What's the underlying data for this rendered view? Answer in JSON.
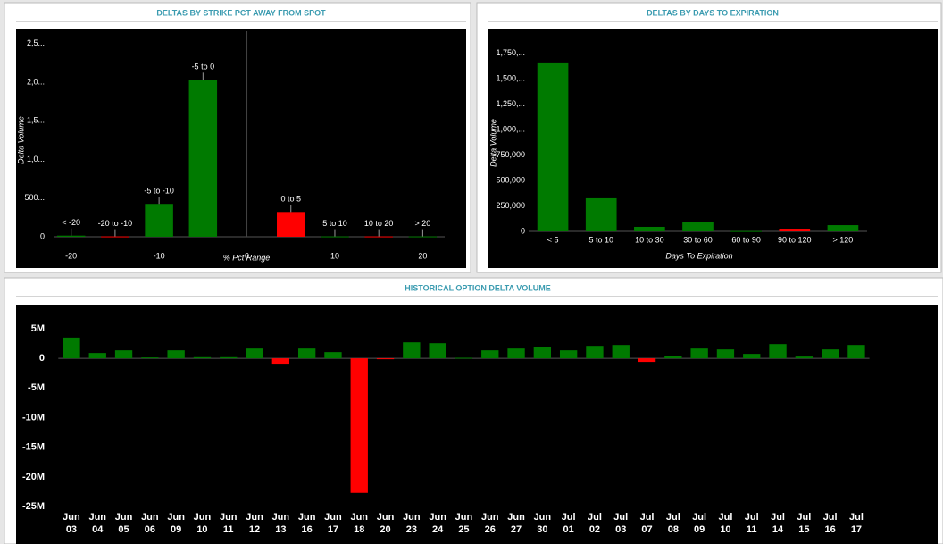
{
  "chart_data": [
    {
      "type": "bar",
      "title": "DELTAS BY STRIKE PCT AWAY FROM SPOT",
      "x_label": "% Pct Range",
      "y_label": "Delta Volume",
      "categories": [
        "< -20",
        "-20 to -10",
        "-5 to -10",
        "-5 to 0",
        "0 to 5",
        "5 to 10",
        "10 to 20",
        "> 20"
      ],
      "x": [
        -20,
        -15,
        -10,
        -5,
        5,
        10,
        15,
        20
      ],
      "values": [
        15000,
        5000,
        425000,
        2030000,
        320000,
        5000,
        5000,
        5000
      ],
      "colors": [
        "#007a00",
        "#ff0000",
        "#007a00",
        "#007a00",
        "#ff0000",
        "#007a00",
        "#ff0000",
        "#007a00"
      ],
      "xlim": [
        -22,
        22.5
      ],
      "xticks": [
        -20,
        -10,
        0,
        10,
        20
      ],
      "ylim": [
        0,
        2600000
      ],
      "yticks": [
        0,
        {
          "value": 500000,
          "label": "500..."
        },
        {
          "value": 1000000,
          "label": "1,0..."
        },
        {
          "value": 1500000,
          "label": "1,5..."
        },
        {
          "value": 2000000,
          "label": "2,0..."
        },
        {
          "value": 2500000,
          "label": "2,5..."
        }
      ]
    },
    {
      "type": "bar",
      "title": "DELTAS BY DAYS TO EXPIRATION",
      "x_label": "Days To Expiration",
      "y_label": "Delta Volume",
      "categories": [
        "< 5",
        "5 to 10",
        "10 to 30",
        "30 to 60",
        "60 to 90",
        "90 to 120",
        "> 120"
      ],
      "values": [
        1658000,
        325000,
        44000,
        88000,
        3000,
        26000,
        61000
      ],
      "colors": [
        "#007a00",
        "#007a00",
        "#007a00",
        "#007a00",
        "#007a00",
        "#ff0000",
        "#007a00"
      ],
      "ylim": [
        0,
        1850000
      ],
      "yticks": [
        0,
        {
          "value": 250000,
          "label": "250,000"
        },
        {
          "value": 500000,
          "label": "500,000"
        },
        {
          "value": 750000,
          "label": "750,000"
        },
        {
          "value": 1000000,
          "label": "1,000,..."
        },
        {
          "value": 1250000,
          "label": "1,250,..."
        },
        {
          "value": 1500000,
          "label": "1,500,..."
        },
        {
          "value": 1750000,
          "label": "1,750,..."
        }
      ]
    },
    {
      "type": "bar",
      "title": "HISTORICAL OPTION DELTA VOLUME",
      "categories": [
        [
          "Jun",
          "03"
        ],
        [
          "Jun",
          "04"
        ],
        [
          "Jun",
          "05"
        ],
        [
          "Jun",
          "06"
        ],
        [
          "Jun",
          "09"
        ],
        [
          "Jun",
          "10"
        ],
        [
          "Jun",
          "11"
        ],
        [
          "Jun",
          "12"
        ],
        [
          "Jun",
          "13"
        ],
        [
          "Jun",
          "16"
        ],
        [
          "Jun",
          "17"
        ],
        [
          "Jun",
          "18"
        ],
        [
          "Jun",
          "20"
        ],
        [
          "Jun",
          "23"
        ],
        [
          "Jun",
          "24"
        ],
        [
          "Jun",
          "25"
        ],
        [
          "Jun",
          "26"
        ],
        [
          "Jun",
          "27"
        ],
        [
          "Jun",
          "30"
        ],
        [
          "Jul",
          "01"
        ],
        [
          "Jul",
          "02"
        ],
        [
          "Jul",
          "03"
        ],
        [
          "Jul",
          "07"
        ],
        [
          "Jul",
          "08"
        ],
        [
          "Jul",
          "09"
        ],
        [
          "Jul",
          "10"
        ],
        [
          "Jul",
          "11"
        ],
        [
          "Jul",
          "14"
        ],
        [
          "Jul",
          "15"
        ],
        [
          "Jul",
          "16"
        ],
        [
          "Jul",
          "17"
        ]
      ],
      "values": [
        3500000,
        900000,
        1350000,
        150000,
        1350000,
        200000,
        200000,
        1650000,
        -1050000,
        1650000,
        1050000,
        -22700000,
        -150000,
        2700000,
        2550000,
        100000,
        1350000,
        1650000,
        1950000,
        1350000,
        2100000,
        2250000,
        -600000,
        450000,
        1650000,
        1500000,
        750000,
        2400000,
        300000,
        1500000,
        2250000
      ],
      "positive_color": "#007a00",
      "negative_color": "#ff0000",
      "ylim": [
        -26200000,
        7400000
      ],
      "yticks": [
        {
          "value": 5000000,
          "label": "5M"
        },
        0,
        {
          "value": -5000000,
          "label": "-5M"
        },
        {
          "value": -10000000,
          "label": "-10M"
        },
        {
          "value": -15000000,
          "label": "-15M"
        },
        {
          "value": -20000000,
          "label": "-20M"
        },
        {
          "value": -25000000,
          "label": "-25M"
        }
      ]
    }
  ]
}
